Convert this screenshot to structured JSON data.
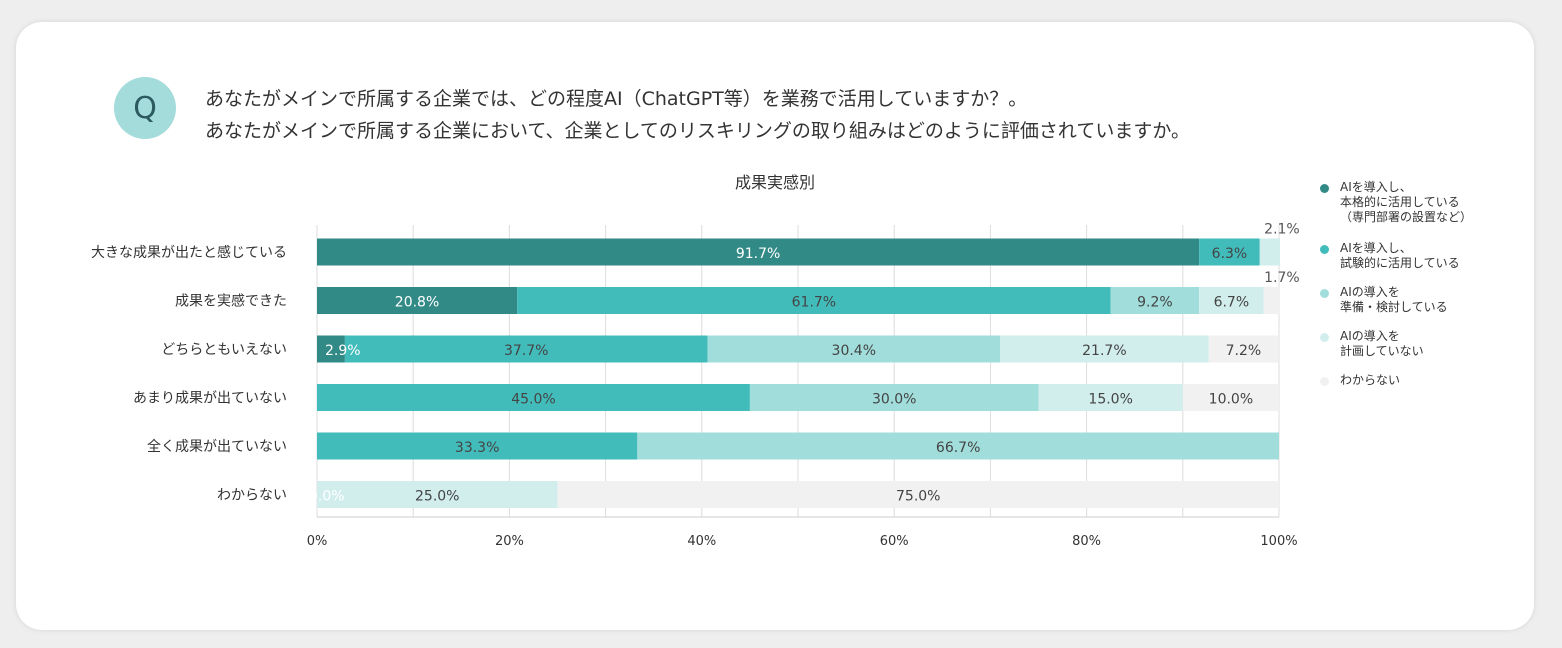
{
  "question": {
    "badge": "Q",
    "line1": "あなたがメインで所属する企業では、どの程度AI（ChatGPT等）を業務で活用していますか？。",
    "line2": "あなたがメインで所属する企業において、企業としてのリスキリングの取り組みはどのように評価されていますか。"
  },
  "chart_data": {
    "type": "bar",
    "orientation": "horizontal",
    "stacked": true,
    "title": "成果実感別",
    "categories": [
      "大きな成果が出たと感じている",
      "成果を実感できた",
      "どちらともいえない",
      "あまり成果が出ていない",
      "全く成果が出ていない",
      "わからない"
    ],
    "series": [
      {
        "name": "AIを導入し、\n本格的に活用している\n（専門部署の設置など）",
        "color": "#328a87",
        "values": [
          91.7,
          20.8,
          2.9,
          0.0,
          0.0,
          0.0
        ]
      },
      {
        "name": "AIを導入し、\n試験的に活用している",
        "color": "#42bcbb",
        "values": [
          6.3,
          61.7,
          37.7,
          45.0,
          33.3,
          0.0
        ]
      },
      {
        "name": "AIの導入を\n準備・検討している",
        "color": "#a1dddb",
        "values": [
          0.0,
          9.2,
          30.4,
          30.0,
          66.7,
          0.0
        ]
      },
      {
        "name": "AIの導入を\n計画していない",
        "color": "#d1eeed",
        "values": [
          2.1,
          6.7,
          21.7,
          15.0,
          0.0,
          25.0
        ]
      },
      {
        "name": "わからない",
        "color": "#f1f1f1",
        "values": [
          0.0,
          1.7,
          7.2,
          10.0,
          0.0,
          75.0
        ]
      }
    ],
    "xlim": [
      0,
      100
    ],
    "xticks": [
      "0%",
      "20%",
      "40%",
      "60%",
      "80%",
      "100%"
    ],
    "grid": true,
    "legend": "right",
    "labels": [
      [
        {
          "s": 0,
          "text": "91.7%"
        },
        {
          "s": 1,
          "text": "6.3%"
        },
        {
          "s": 3,
          "text": "2.1%",
          "pos": "above"
        }
      ],
      [
        {
          "s": 0,
          "text": "20.8%"
        },
        {
          "s": 1,
          "text": "61.7%"
        },
        {
          "s": 2,
          "text": "9.2%"
        },
        {
          "s": 3,
          "text": "6.7%"
        },
        {
          "s": 4,
          "text": "1.7%",
          "pos": "above"
        }
      ],
      [
        {
          "s": 0,
          "text": "2.9%"
        },
        {
          "s": 1,
          "text": "37.7%"
        },
        {
          "s": 2,
          "text": "30.4%"
        },
        {
          "s": 3,
          "text": "21.7%"
        },
        {
          "s": 4,
          "text": "7.2%"
        }
      ],
      [
        {
          "s": 1,
          "text": "45.0%"
        },
        {
          "s": 2,
          "text": "30.0%"
        },
        {
          "s": 3,
          "text": "15.0%"
        },
        {
          "s": 4,
          "text": "10.0%"
        }
      ],
      [
        {
          "s": 1,
          "text": "33.3%"
        },
        {
          "s": 2,
          "text": "66.7%"
        }
      ],
      [
        {
          "s": 0,
          "text": "0.0%",
          "pos": "start"
        },
        {
          "s": 3,
          "text": "25.0%"
        },
        {
          "s": 4,
          "text": "75.0%"
        }
      ]
    ]
  }
}
